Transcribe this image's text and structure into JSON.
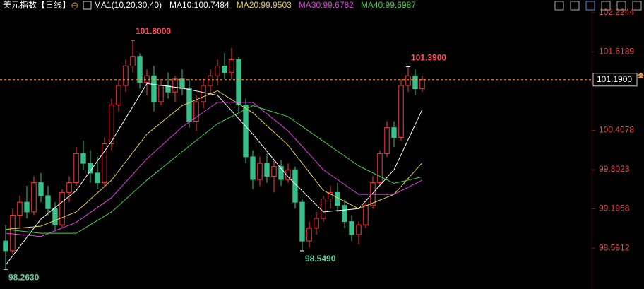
{
  "chart_data": {
    "type": "candlestick",
    "title": "美元指数【日线】",
    "indicator": "MA1(10,20,30,40)",
    "ylim": [
      98.058,
      102.42
    ],
    "yticks": [
      102.2244,
      101.6189,
      100.4078,
      99.8023,
      99.1968,
      98.5912
    ],
    "up_color": "#ff3b3b",
    "down_color": "#38c08a",
    "current_price": {
      "value": 101.19,
      "label": "101.1900",
      "color": "#f0a040"
    },
    "extreme_labels": [
      {
        "value": 101.8,
        "label": "101.8000",
        "kind": "high",
        "color": "#ff4d5a"
      },
      {
        "value": 101.39,
        "label": "101.3900",
        "kind": "high",
        "color": "#ff4d5a"
      },
      {
        "value": 98.549,
        "label": "98.5490",
        "kind": "low",
        "color": "#5fd0a0"
      },
      {
        "value": 98.263,
        "label": "98.2630",
        "kind": "low",
        "color": "#5fd0a0"
      }
    ],
    "candles": {
      "open": [
        98.7,
        98.55,
        99.1,
        99.3,
        99.15,
        99.6,
        99.4,
        99.2,
        98.95,
        99.45,
        99.6,
        100.05,
        99.9,
        99.75,
        99.6,
        100.2,
        100.8,
        101.1,
        101.4,
        101.55,
        101.15,
        101.25,
        100.85,
        101.1,
        101.0,
        101.2,
        101.05,
        100.55,
        100.85,
        101.1,
        101.25,
        101.4,
        101.3,
        101.5,
        100.8,
        100.0,
        99.65,
        99.9,
        99.7,
        99.85,
        99.65,
        99.8,
        99.3,
        98.7,
        98.9,
        99.05,
        99.35,
        99.45,
        99.25,
        99.0,
        98.8,
        98.95,
        99.25,
        99.6,
        100.05,
        100.45,
        100.3,
        101.1,
        101.25,
        101.05
      ],
      "high": [
        98.95,
        99.2,
        99.4,
        99.55,
        99.7,
        99.75,
        99.55,
        99.3,
        99.5,
        99.7,
        100.15,
        100.25,
        100.1,
        100.0,
        100.3,
        100.9,
        101.2,
        101.5,
        101.8,
        101.6,
        101.35,
        101.4,
        101.2,
        101.3,
        101.25,
        101.35,
        101.2,
        100.95,
        101.2,
        101.35,
        101.5,
        101.6,
        101.68,
        101.55,
        100.9,
        100.1,
        100.0,
        100.05,
        99.95,
        99.95,
        99.9,
        99.85,
        99.35,
        99.0,
        99.15,
        99.4,
        99.55,
        99.6,
        99.35,
        99.1,
        99.0,
        99.3,
        99.7,
        100.1,
        100.55,
        100.55,
        101.2,
        101.39,
        101.35,
        101.25
      ],
      "low": [
        98.263,
        98.5,
        98.9,
        99.05,
        99.1,
        99.3,
        99.1,
        98.85,
        98.9,
        99.3,
        99.55,
        99.8,
        99.6,
        99.5,
        99.55,
        100.1,
        100.7,
        101.0,
        101.3,
        101.05,
        100.95,
        100.7,
        100.8,
        100.9,
        100.85,
        100.95,
        100.45,
        100.4,
        100.75,
        100.95,
        101.1,
        101.2,
        101.2,
        100.7,
        99.9,
        99.5,
        99.55,
        99.6,
        99.45,
        99.55,
        99.6,
        99.2,
        98.549,
        98.6,
        98.8,
        99.0,
        99.2,
        99.15,
        98.9,
        98.7,
        98.65,
        98.9,
        99.2,
        99.55,
        100.0,
        100.15,
        100.25,
        101.0,
        100.95,
        101.0
      ],
      "close": [
        98.55,
        99.1,
        99.3,
        99.15,
        99.6,
        99.4,
        99.2,
        98.95,
        99.45,
        99.6,
        100.05,
        99.9,
        99.75,
        99.6,
        100.2,
        100.8,
        101.1,
        101.4,
        101.55,
        101.15,
        101.25,
        100.85,
        101.1,
        101.0,
        101.2,
        101.05,
        100.55,
        100.85,
        101.1,
        101.25,
        101.4,
        101.3,
        101.5,
        100.8,
        100.0,
        99.65,
        99.9,
        99.7,
        99.85,
        99.65,
        99.8,
        99.3,
        98.7,
        98.9,
        99.05,
        99.35,
        99.45,
        99.25,
        99.0,
        98.8,
        98.95,
        99.25,
        99.6,
        100.05,
        100.45,
        100.3,
        101.1,
        101.25,
        101.05,
        101.19
      ]
    },
    "series": [
      {
        "name": "MA10:100.7484",
        "color": "#ffffff",
        "x": [
          0,
          5,
          10,
          15,
          20,
          25,
          30,
          35,
          40,
          45,
          50,
          55,
          59
        ],
        "values": [
          98.33,
          99.04,
          99.48,
          100.24,
          101.13,
          101.06,
          100.95,
          100.35,
          99.69,
          99.15,
          99.2,
          99.8,
          100.73
        ]
      },
      {
        "name": "MA20:99.9503",
        "color": "#e6d04a",
        "x": [
          0,
          5,
          10,
          15,
          20,
          25,
          30,
          35,
          40,
          45,
          50,
          55,
          59
        ],
        "values": [
          98.88,
          98.93,
          99.15,
          99.64,
          100.35,
          100.79,
          101.02,
          100.68,
          100.18,
          99.48,
          99.2,
          99.42,
          99.91
        ]
      },
      {
        "name": "MA30:99.6782",
        "color": "#e040e0",
        "x": [
          0,
          5,
          10,
          15,
          20,
          25,
          30,
          35,
          40,
          45,
          50,
          55,
          59
        ],
        "values": [
          98.82,
          98.77,
          98.99,
          99.37,
          99.97,
          100.46,
          100.84,
          100.84,
          100.4,
          99.8,
          99.42,
          99.42,
          99.64
        ]
      },
      {
        "name": "MA40:99.6987",
        "color": "#44d044",
        "x": [
          0,
          5,
          10,
          15,
          20,
          25,
          30,
          35,
          40,
          45,
          50,
          55,
          59
        ],
        "values": [
          98.88,
          98.82,
          98.82,
          99.15,
          99.64,
          100.08,
          100.51,
          100.79,
          100.62,
          100.24,
          99.86,
          99.59,
          99.69
        ]
      }
    ]
  }
}
